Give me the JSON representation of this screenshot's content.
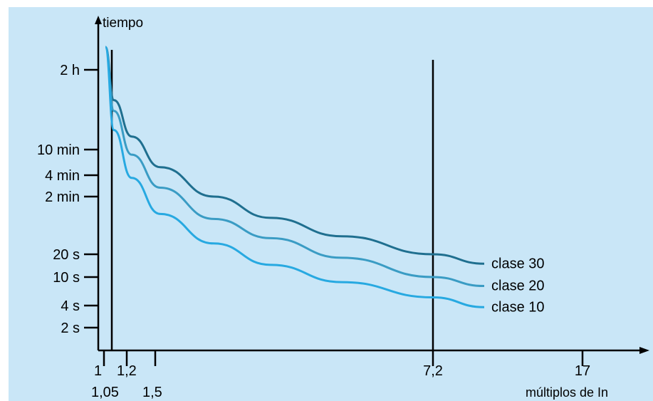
{
  "chart_data": {
    "type": "line",
    "title": "",
    "xlabel": "múltiplos de In",
    "ylabel": "tiempo",
    "x_ticks": [
      {
        "value": 1,
        "label": "1",
        "row": "upper"
      },
      {
        "value": 1.05,
        "label": "1,05",
        "row": "lower"
      },
      {
        "value": 1.2,
        "label": "1,2",
        "row": "upper"
      },
      {
        "value": 1.5,
        "label": "1,5",
        "row": "lower"
      },
      {
        "value": 7.2,
        "label": "7,2",
        "row": "upper"
      },
      {
        "value": 17,
        "label": "17",
        "row": "upper"
      }
    ],
    "y_ticks": [
      {
        "seconds": 7200,
        "label": "2 h"
      },
      {
        "seconds": 600,
        "label": "10 min"
      },
      {
        "seconds": 240,
        "label": "4 min"
      },
      {
        "seconds": 120,
        "label": "2 min"
      },
      {
        "seconds": 20,
        "label": "20 s"
      },
      {
        "seconds": 10,
        "label": "10 s"
      },
      {
        "seconds": 4,
        "label": "4 s"
      },
      {
        "seconds": 2,
        "label": "2 s"
      }
    ],
    "vertical_lines": [
      1.05,
      7.2
    ],
    "series": [
      {
        "name": "clase 30",
        "color": "#1f6f8f",
        "points": [
          [
            1.03,
            15000
          ],
          [
            1.1,
            2800
          ],
          [
            1.3,
            900
          ],
          [
            1.7,
            320
          ],
          [
            2.5,
            120
          ],
          [
            3.5,
            62
          ],
          [
            5.0,
            35
          ],
          [
            7.2,
            20
          ],
          [
            9.5,
            15
          ]
        ]
      },
      {
        "name": "clase 20",
        "color": "#3a9cc4",
        "points": [
          [
            1.03,
            15000
          ],
          [
            1.1,
            2000
          ],
          [
            1.3,
            500
          ],
          [
            1.7,
            160
          ],
          [
            2.5,
            60
          ],
          [
            3.5,
            33
          ],
          [
            5.0,
            18
          ],
          [
            7.2,
            10
          ],
          [
            9.5,
            7.5
          ]
        ]
      },
      {
        "name": "clase 10",
        "color": "#27a9e1",
        "points": [
          [
            1.03,
            15000
          ],
          [
            1.1,
            1100
          ],
          [
            1.3,
            220
          ],
          [
            1.7,
            70
          ],
          [
            2.5,
            28
          ],
          [
            3.5,
            14.5
          ],
          [
            5.0,
            8.5
          ],
          [
            7.2,
            5.2
          ],
          [
            9.5,
            3.8
          ]
        ]
      }
    ],
    "colors": {
      "background": "#c9e6f7",
      "axis": "#000000"
    }
  }
}
